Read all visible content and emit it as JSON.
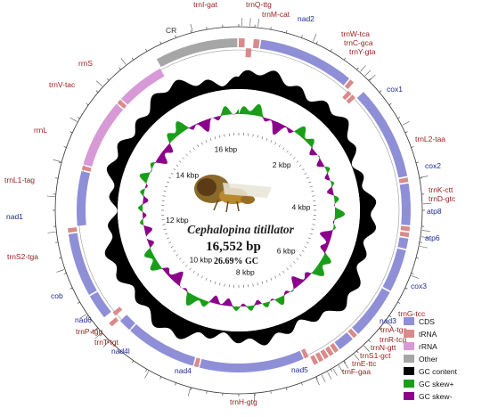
{
  "genome": {
    "species": "Cephalopina titillator",
    "size": "16,552 bp",
    "gc": "26.69%  GC",
    "ticks": [
      "2 kbp",
      "4 kbp",
      "6 kbp",
      "8 kbp",
      "10 kbp",
      "12 kbp",
      "14 kbp",
      "16 kbp"
    ]
  },
  "colors": {
    "CDS": "#8f8fd8",
    "tRNA": "#d98a8a",
    "rRNA": "#d79ad7",
    "Other": "#a6a6a6",
    "gc_content": "#000000",
    "gc_skew_pos": "#1a9e1a",
    "gc_skew_neg": "#8b008b",
    "label_trna": "#9b1b1b",
    "label_cds": "#1f2a8f"
  },
  "legend": [
    {
      "key": "CDS",
      "label": "CDS"
    },
    {
      "key": "tRNA",
      "label": "tRNA"
    },
    {
      "key": "rRNA",
      "label": "rRNA"
    },
    {
      "key": "Other",
      "label": "Other"
    },
    {
      "key": "gc_content",
      "label": "GC content"
    },
    {
      "key": "gc_skew_pos",
      "label": "GC skew+"
    },
    {
      "key": "gc_skew_neg",
      "label": "GC skew-"
    }
  ],
  "features": [
    {
      "label": "trnI-gat",
      "type": "tRNA",
      "strand": "+"
    },
    {
      "label": "trnQ-ttg",
      "type": "tRNA",
      "strand": "-"
    },
    {
      "label": "trnM-cat",
      "type": "tRNA",
      "strand": "+"
    },
    {
      "label": "nad2",
      "type": "CDS",
      "strand": "+"
    },
    {
      "label": "trnW-tca",
      "type": "tRNA",
      "strand": "+"
    },
    {
      "label": "trnC-gca",
      "type": "tRNA",
      "strand": "-"
    },
    {
      "label": "trnY-gta",
      "type": "tRNA",
      "strand": "-"
    },
    {
      "label": "cox1",
      "type": "CDS",
      "strand": "+"
    },
    {
      "label": "trnL2-taa",
      "type": "tRNA",
      "strand": "+"
    },
    {
      "label": "cox2",
      "type": "CDS",
      "strand": "+"
    },
    {
      "label": "trnK-ctt",
      "type": "tRNA",
      "strand": "+"
    },
    {
      "label": "trnD-gtc",
      "type": "tRNA",
      "strand": "+"
    },
    {
      "label": "atp8",
      "type": "CDS",
      "strand": "+"
    },
    {
      "label": "atp6",
      "type": "CDS",
      "strand": "+"
    },
    {
      "label": "cox3",
      "type": "CDS",
      "strand": "+"
    },
    {
      "label": "trnG-tcc",
      "type": "tRNA",
      "strand": "+"
    },
    {
      "label": "nad3",
      "type": "CDS",
      "strand": "+"
    },
    {
      "label": "trnA-tgc",
      "type": "tRNA",
      "strand": "+"
    },
    {
      "label": "trnR-tcg",
      "type": "tRNA",
      "strand": "+"
    },
    {
      "label": "trnN-gtt",
      "type": "tRNA",
      "strand": "+"
    },
    {
      "label": "trnS1-gct",
      "type": "tRNA",
      "strand": "+"
    },
    {
      "label": "trnE-ttc",
      "type": "tRNA",
      "strand": "+"
    },
    {
      "label": "trnF-gaa",
      "type": "tRNA",
      "strand": "-"
    },
    {
      "label": "nad5",
      "type": "CDS",
      "strand": "-"
    },
    {
      "label": "trnH-gtg",
      "type": "tRNA",
      "strand": "-"
    },
    {
      "label": "nad4",
      "type": "CDS",
      "strand": "-"
    },
    {
      "label": "nad4l",
      "type": "CDS",
      "strand": "-"
    },
    {
      "label": "trnT-tgt",
      "type": "tRNA",
      "strand": "+"
    },
    {
      "label": "trnP-tgg",
      "type": "tRNA",
      "strand": "-"
    },
    {
      "label": "nad6",
      "type": "CDS",
      "strand": "+"
    },
    {
      "label": "cob",
      "type": "CDS",
      "strand": "+"
    },
    {
      "label": "trnS2-tga",
      "type": "tRNA",
      "strand": "+"
    },
    {
      "label": "nad1",
      "type": "CDS",
      "strand": "-"
    },
    {
      "label": "trnL1-tag",
      "type": "tRNA",
      "strand": "-"
    },
    {
      "label": "rrnL",
      "type": "rRNA",
      "strand": "-"
    },
    {
      "label": "trnV-tac",
      "type": "tRNA",
      "strand": "-"
    },
    {
      "label": "rrnS",
      "type": "rRNA",
      "strand": "-"
    },
    {
      "label": "CR",
      "type": "Other",
      "strand": "+"
    }
  ]
}
